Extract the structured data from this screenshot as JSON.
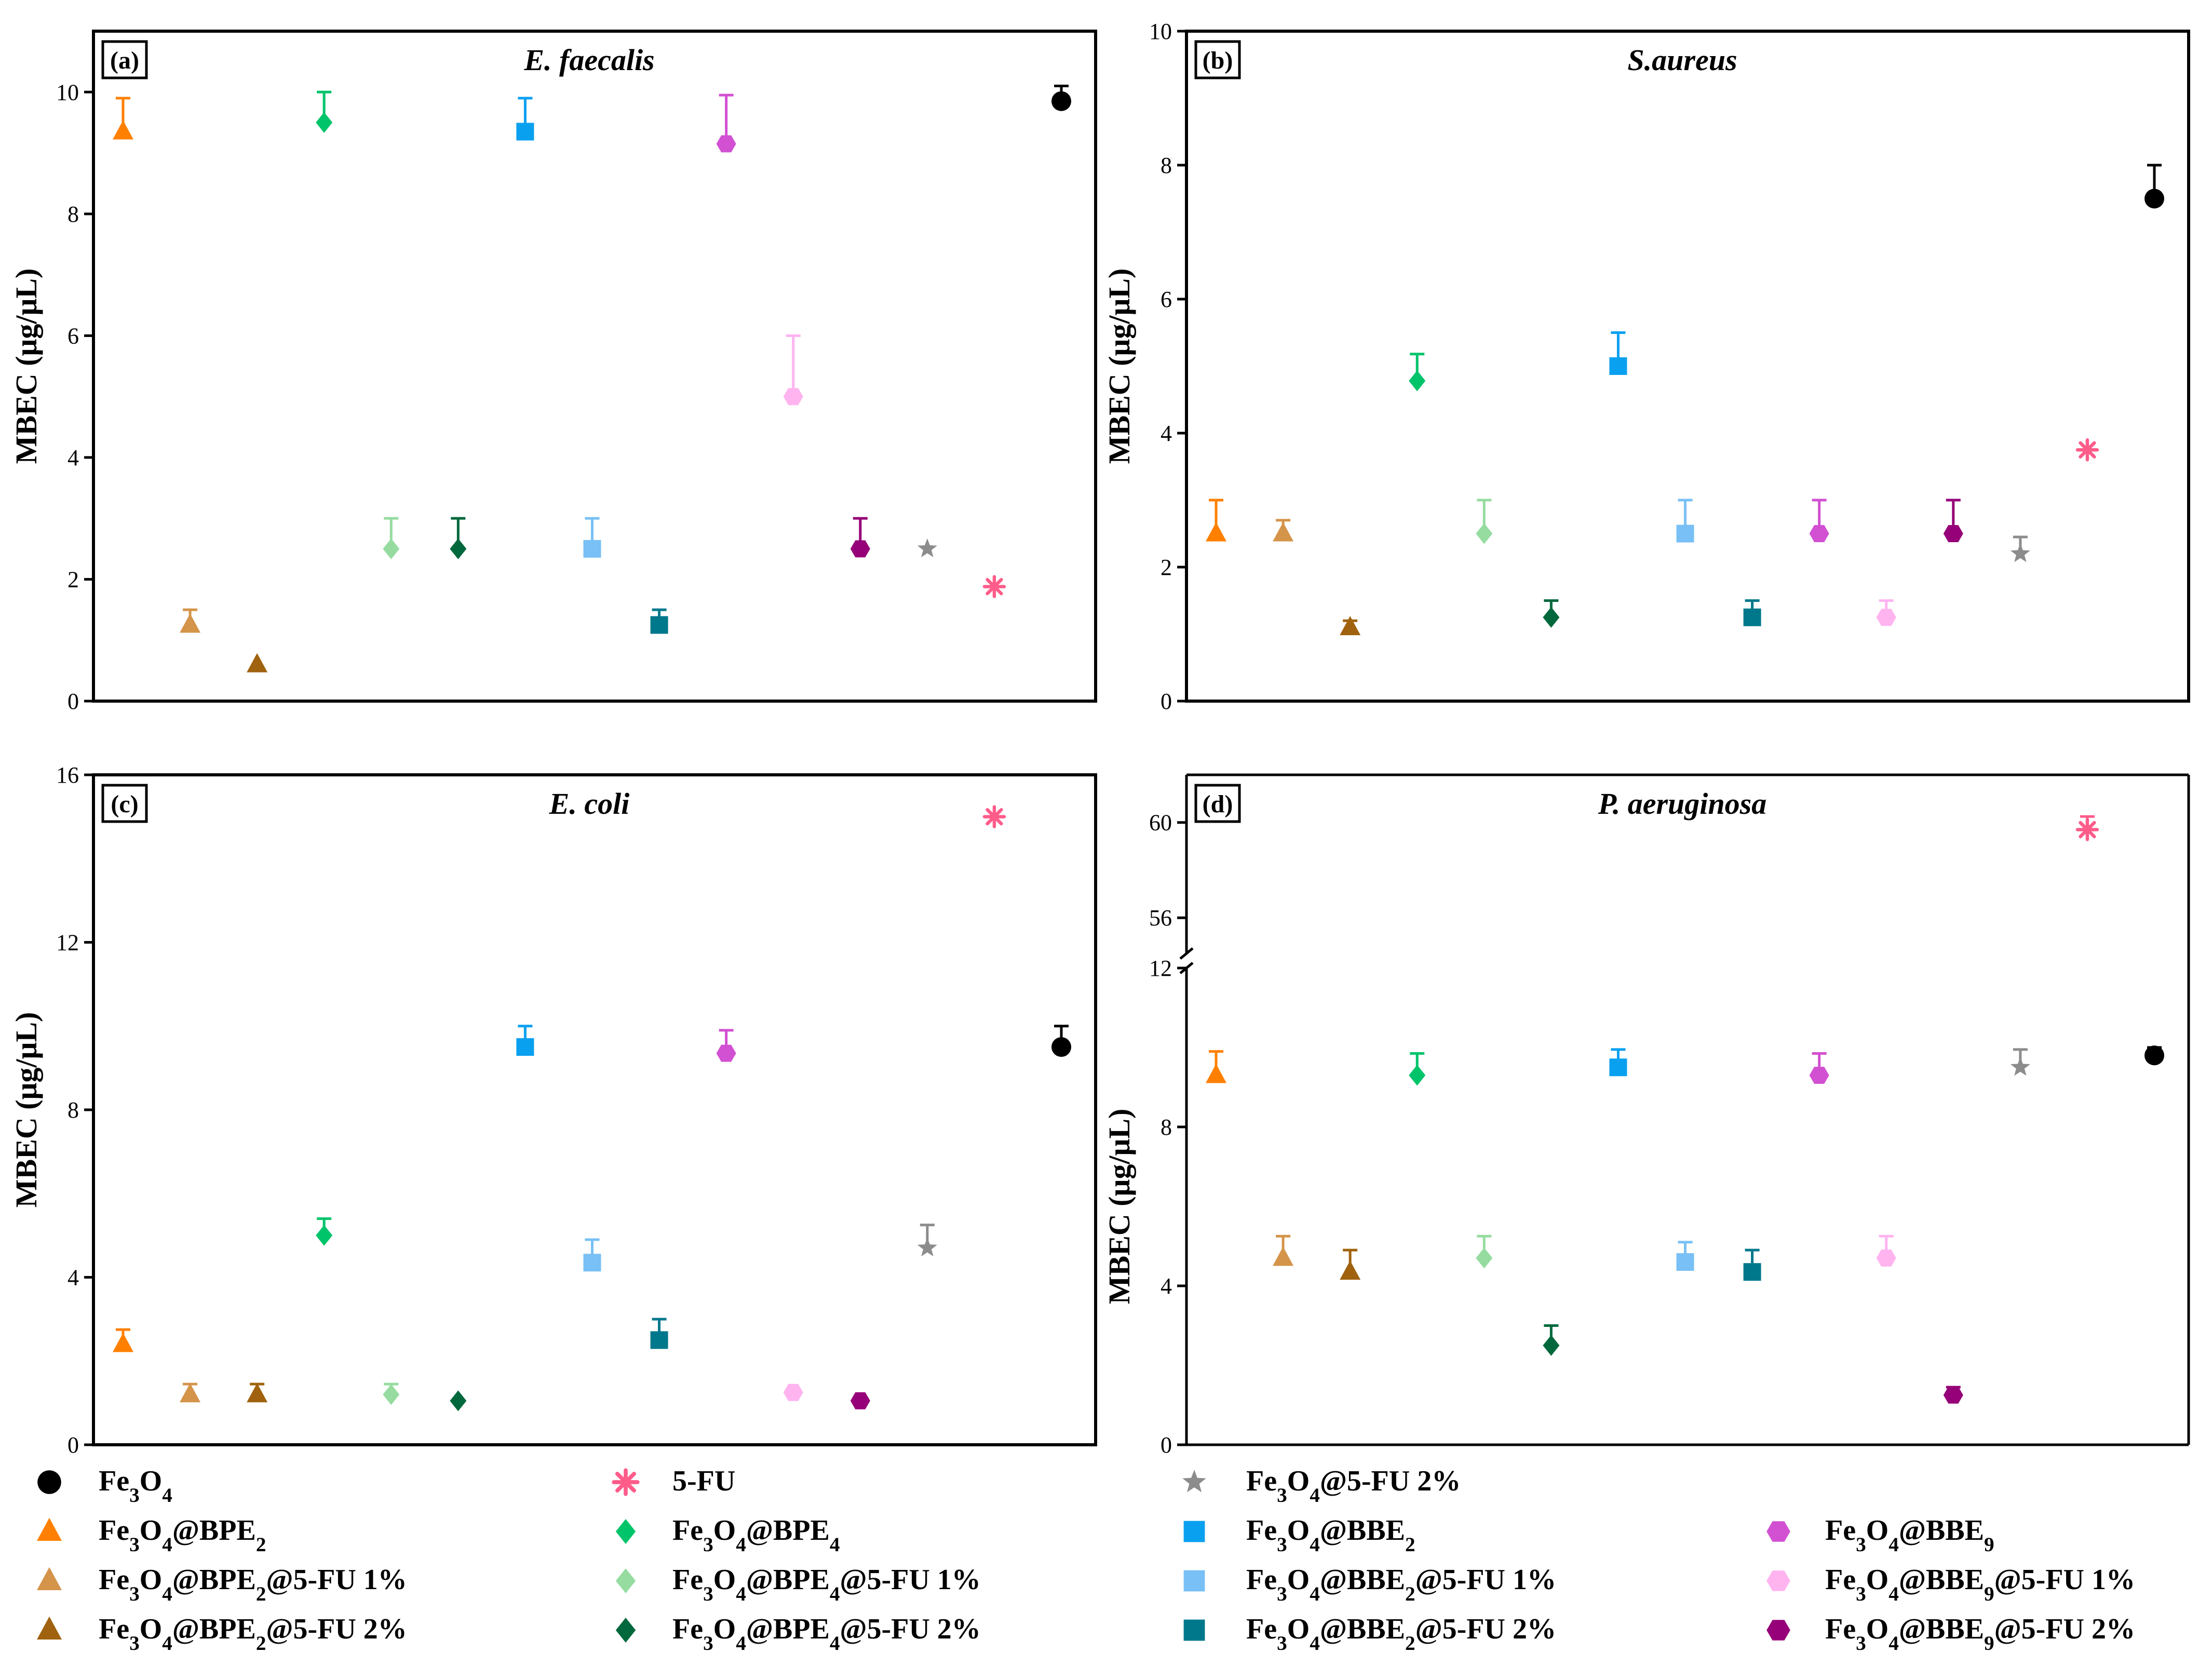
{
  "legend": {
    "items": [
      {
        "id": "fe3o4",
        "marker": "circle",
        "color": "#000000",
        "base": "Fe",
        "label_parts": [
          [
            "Fe",
            ""
          ],
          [
            "3",
            "sub"
          ],
          [
            "O",
            ""
          ],
          [
            "4",
            "sub"
          ]
        ]
      },
      {
        "id": "bpe2",
        "marker": "triangle",
        "color": "#FF8000",
        "label_parts": [
          [
            "Fe",
            ""
          ],
          [
            "3",
            "sub"
          ],
          [
            "O",
            ""
          ],
          [
            "4",
            "sub"
          ],
          [
            "@BPE",
            ""
          ],
          [
            "2",
            "sub"
          ]
        ]
      },
      {
        "id": "bpe2_1",
        "marker": "triangle",
        "color": "#D4944A",
        "label_parts": [
          [
            "Fe",
            ""
          ],
          [
            "3",
            "sub"
          ],
          [
            "O",
            ""
          ],
          [
            "4",
            "sub"
          ],
          [
            "@BPE",
            ""
          ],
          [
            "2",
            "sub"
          ],
          [
            "@5-FU 1%",
            ""
          ]
        ]
      },
      {
        "id": "bpe2_2",
        "marker": "triangle",
        "color": "#A0620E",
        "label_parts": [
          [
            "Fe",
            ""
          ],
          [
            "3",
            "sub"
          ],
          [
            "O",
            ""
          ],
          [
            "4",
            "sub"
          ],
          [
            "@BPE",
            ""
          ],
          [
            "2",
            "sub"
          ],
          [
            "@5-FU 2%",
            ""
          ]
        ]
      },
      {
        "id": "fu",
        "marker": "asterisk",
        "color": "#FF5C8A",
        "label_parts": [
          [
            "5-FU",
            ""
          ]
        ]
      },
      {
        "id": "bpe4",
        "marker": "diamond",
        "color": "#00C46A",
        "label_parts": [
          [
            "Fe",
            ""
          ],
          [
            "3",
            "sub"
          ],
          [
            "O",
            ""
          ],
          [
            "4",
            "sub"
          ],
          [
            "@BPE",
            ""
          ],
          [
            "4",
            "sub"
          ]
        ]
      },
      {
        "id": "bpe4_1",
        "marker": "diamond",
        "color": "#96DCA0",
        "label_parts": [
          [
            "Fe",
            ""
          ],
          [
            "3",
            "sub"
          ],
          [
            "O",
            ""
          ],
          [
            "4",
            "sub"
          ],
          [
            "@BPE",
            ""
          ],
          [
            "4",
            "sub"
          ],
          [
            "@5-FU 1%",
            ""
          ]
        ]
      },
      {
        "id": "bpe4_2",
        "marker": "diamond",
        "color": "#00683C",
        "label_parts": [
          [
            "Fe",
            ""
          ],
          [
            "3",
            "sub"
          ],
          [
            "O",
            ""
          ],
          [
            "4",
            "sub"
          ],
          [
            "@BPE",
            ""
          ],
          [
            "4",
            "sub"
          ],
          [
            "@5-FU 2%",
            ""
          ]
        ]
      },
      {
        "id": "fe_fu2",
        "marker": "star",
        "color": "#8C8C8C",
        "label_parts": [
          [
            "Fe",
            ""
          ],
          [
            "3",
            "sub"
          ],
          [
            "O",
            ""
          ],
          [
            "4",
            "sub"
          ],
          [
            "@5-FU 2%",
            ""
          ]
        ]
      },
      {
        "id": "bbe2",
        "marker": "square",
        "color": "#0AA0F0",
        "label_parts": [
          [
            "Fe",
            ""
          ],
          [
            "3",
            "sub"
          ],
          [
            "O",
            ""
          ],
          [
            "4",
            "sub"
          ],
          [
            "@BBE",
            ""
          ],
          [
            "2",
            "sub"
          ]
        ]
      },
      {
        "id": "bbe2_1",
        "marker": "square",
        "color": "#78C0F5",
        "label_parts": [
          [
            "Fe",
            ""
          ],
          [
            "3",
            "sub"
          ],
          [
            "O",
            ""
          ],
          [
            "4",
            "sub"
          ],
          [
            "@BBE",
            ""
          ],
          [
            "2",
            "sub"
          ],
          [
            "@5-FU 1%",
            ""
          ]
        ]
      },
      {
        "id": "bbe2_2",
        "marker": "square",
        "color": "#00788C",
        "label_parts": [
          [
            "Fe",
            ""
          ],
          [
            "3",
            "sub"
          ],
          [
            "O",
            ""
          ],
          [
            "4",
            "sub"
          ],
          [
            "@BBE",
            ""
          ],
          [
            "2",
            "sub"
          ],
          [
            "@5-FU 2%",
            ""
          ]
        ]
      },
      {
        "id": "bbe9",
        "marker": "hexagon",
        "color": "#D250D2",
        "label_parts": [
          [
            "Fe",
            ""
          ],
          [
            "3",
            "sub"
          ],
          [
            "O",
            ""
          ],
          [
            "4",
            "sub"
          ],
          [
            "@BBE",
            ""
          ],
          [
            "9",
            "sub"
          ]
        ]
      },
      {
        "id": "bbe9_1",
        "marker": "hexagon",
        "color": "#FFB4F0",
        "label_parts": [
          [
            "Fe",
            ""
          ],
          [
            "3",
            "sub"
          ],
          [
            "O",
            ""
          ],
          [
            "4",
            "sub"
          ],
          [
            "@BBE",
            ""
          ],
          [
            "9",
            "sub"
          ],
          [
            "@5-FU 1%",
            ""
          ]
        ]
      },
      {
        "id": "bbe9_2",
        "marker": "hexagon",
        "color": "#960078",
        "label_parts": [
          [
            "Fe",
            ""
          ],
          [
            "3",
            "sub"
          ],
          [
            "O",
            ""
          ],
          [
            "4",
            "sub"
          ],
          [
            "@BBE",
            ""
          ],
          [
            "9",
            "sub"
          ],
          [
            "@5-FU 2%",
            ""
          ]
        ]
      }
    ]
  },
  "chart_data": [
    {
      "type": "scatter",
      "panel_label": "(a)",
      "title": "E. faecalis",
      "ylabel": "MBEC (μg/μL)",
      "ylim": [
        0,
        11
      ],
      "yticks": [
        0,
        2,
        4,
        6,
        8,
        10
      ],
      "points": [
        {
          "series": "bpe2",
          "x": 1,
          "y": 9.35,
          "err": 0.55
        },
        {
          "series": "bpe2_1",
          "x": 2,
          "y": 1.25,
          "err": 0.25
        },
        {
          "series": "bpe2_2",
          "x": 3,
          "y": 0.6,
          "err": 0
        },
        {
          "series": "bpe4",
          "x": 4,
          "y": 9.5,
          "err": 0.5
        },
        {
          "series": "bpe4_1",
          "x": 5,
          "y": 2.5,
          "err": 0.5
        },
        {
          "series": "bpe4_2",
          "x": 6,
          "y": 2.5,
          "err": 0.5
        },
        {
          "series": "bbe2",
          "x": 7,
          "y": 9.35,
          "err": 0.55
        },
        {
          "series": "bbe2_1",
          "x": 8,
          "y": 2.5,
          "err": 0.5
        },
        {
          "series": "bbe2_2",
          "x": 9,
          "y": 1.25,
          "err": 0.25
        },
        {
          "series": "bbe9",
          "x": 10,
          "y": 9.15,
          "err": 0.8
        },
        {
          "series": "bbe9_1",
          "x": 11,
          "y": 5.0,
          "err": 1.0
        },
        {
          "series": "bbe9_2",
          "x": 12,
          "y": 2.5,
          "err": 0.5
        },
        {
          "series": "fe_fu2",
          "x": 13,
          "y": 2.5,
          "err": 0
        },
        {
          "series": "fu",
          "x": 14,
          "y": 1.88,
          "err": 0
        },
        {
          "series": "fe3o4",
          "x": 15,
          "y": 9.85,
          "err": 0.25
        }
      ]
    },
    {
      "type": "scatter",
      "panel_label": "(b)",
      "title": "S.aureus",
      "ylabel": "MBEC (μg/μL)",
      "ylim": [
        0,
        10
      ],
      "yticks": [
        0,
        2,
        4,
        6,
        8,
        10
      ],
      "points": [
        {
          "series": "bpe2",
          "x": 1,
          "y": 2.5,
          "err": 0.5
        },
        {
          "series": "bpe2_1",
          "x": 2,
          "y": 2.5,
          "err": 0.2
        },
        {
          "series": "bpe2_2",
          "x": 3,
          "y": 1.1,
          "err": 0.1
        },
        {
          "series": "bpe4",
          "x": 4,
          "y": 4.78,
          "err": 0.4
        },
        {
          "series": "bpe4_1",
          "x": 5,
          "y": 2.5,
          "err": 0.5
        },
        {
          "series": "bpe4_2",
          "x": 6,
          "y": 1.25,
          "err": 0.25
        },
        {
          "series": "bbe2",
          "x": 7,
          "y": 5.0,
          "err": 0.5
        },
        {
          "series": "bbe2_1",
          "x": 8,
          "y": 2.5,
          "err": 0.5
        },
        {
          "series": "bbe2_2",
          "x": 9,
          "y": 1.25,
          "err": 0.25
        },
        {
          "series": "bbe9",
          "x": 10,
          "y": 2.5,
          "err": 0.5
        },
        {
          "series": "bbe9_1",
          "x": 11,
          "y": 1.25,
          "err": 0.25
        },
        {
          "series": "bbe9_2",
          "x": 12,
          "y": 2.5,
          "err": 0.5
        },
        {
          "series": "fe_fu2",
          "x": 13,
          "y": 2.2,
          "err": 0.25
        },
        {
          "series": "fu",
          "x": 14,
          "y": 3.75,
          "err": 0
        },
        {
          "series": "fe3o4",
          "x": 15,
          "y": 7.5,
          "err": 0.5
        }
      ]
    },
    {
      "type": "scatter",
      "panel_label": "(c)",
      "title": "E. coli",
      "ylabel": "MBEC (μg/μL)",
      "ylim": [
        0,
        16
      ],
      "yticks": [
        0,
        4,
        8,
        12,
        16
      ],
      "points": [
        {
          "series": "bpe2",
          "x": 1,
          "y": 2.4,
          "err": 0.35
        },
        {
          "series": "bpe2_1",
          "x": 2,
          "y": 1.2,
          "err": 0.25
        },
        {
          "series": "bpe2_2",
          "x": 3,
          "y": 1.2,
          "err": 0.25
        },
        {
          "series": "bpe4",
          "x": 4,
          "y": 5.0,
          "err": 0.4
        },
        {
          "series": "bpe4_1",
          "x": 5,
          "y": 1.2,
          "err": 0.25
        },
        {
          "series": "bpe4_2",
          "x": 6,
          "y": 1.05,
          "err": 0
        },
        {
          "series": "bbe2",
          "x": 7,
          "y": 9.5,
          "err": 0.5
        },
        {
          "series": "bbe2_1",
          "x": 8,
          "y": 4.35,
          "err": 0.55
        },
        {
          "series": "bbe2_2",
          "x": 9,
          "y": 2.5,
          "err": 0.5
        },
        {
          "series": "bbe9",
          "x": 10,
          "y": 9.35,
          "err": 0.55
        },
        {
          "series": "bbe9_1",
          "x": 11,
          "y": 1.25,
          "err": 0
        },
        {
          "series": "bbe9_2",
          "x": 12,
          "y": 1.05,
          "err": 0
        },
        {
          "series": "fe_fu2",
          "x": 13,
          "y": 4.7,
          "err": 0.55
        },
        {
          "series": "fu",
          "x": 14,
          "y": 15.0,
          "err": 0
        },
        {
          "series": "fe3o4",
          "x": 15,
          "y": 9.5,
          "err": 0.5
        }
      ]
    },
    {
      "type": "scatter",
      "panel_label": "(d)",
      "title": "P. aeruginosa",
      "ylabel": "MBEC (μg/μL)",
      "broken_axis": true,
      "lower_ylim": [
        0,
        12
      ],
      "lower_yticks": [
        0,
        4,
        8,
        12
      ],
      "upper_ylim": [
        54.5,
        62
      ],
      "upper_yticks": [
        56,
        60
      ],
      "points": [
        {
          "series": "bpe2",
          "x": 1,
          "y": 9.3,
          "err": 0.6
        },
        {
          "series": "bpe2_1",
          "x": 2,
          "y": 4.7,
          "err": 0.55
        },
        {
          "series": "bpe2_2",
          "x": 3,
          "y": 4.35,
          "err": 0.55
        },
        {
          "series": "bpe4",
          "x": 4,
          "y": 9.3,
          "err": 0.55
        },
        {
          "series": "bpe4_1",
          "x": 5,
          "y": 4.7,
          "err": 0.55
        },
        {
          "series": "bpe4_2",
          "x": 6,
          "y": 2.5,
          "err": 0.5
        },
        {
          "series": "bbe2",
          "x": 7,
          "y": 9.5,
          "err": 0.45
        },
        {
          "series": "bbe2_1",
          "x": 8,
          "y": 4.6,
          "err": 0.5
        },
        {
          "series": "bbe2_2",
          "x": 9,
          "y": 4.35,
          "err": 0.55
        },
        {
          "series": "bbe9",
          "x": 10,
          "y": 9.3,
          "err": 0.55
        },
        {
          "series": "bbe9_1",
          "x": 11,
          "y": 4.7,
          "err": 0.55
        },
        {
          "series": "bbe9_2",
          "x": 12,
          "y": 1.25,
          "err": 0.2
        },
        {
          "series": "fe_fu2",
          "x": 13,
          "y": 9.5,
          "err": 0.45
        },
        {
          "series": "fu",
          "x": 14,
          "y": 59.7,
          "err": 0.55
        },
        {
          "series": "fe3o4",
          "x": 15,
          "y": 9.8,
          "err": 0.2
        }
      ]
    }
  ]
}
